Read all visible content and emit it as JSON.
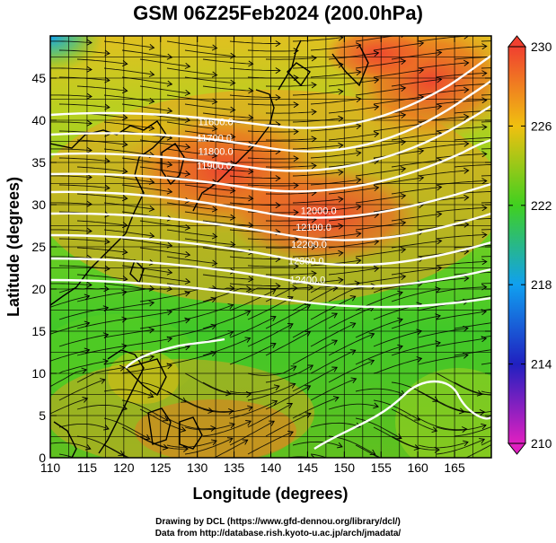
{
  "title": "GSM 06Z25Feb2024 (200.0hPa)",
  "xlabel": "Longitude (degrees)",
  "ylabel": "Latitude  (degrees)",
  "credits": {
    "line1": "Drawing by DCL (https://www.gfd-dennou.org/library/dcl/)",
    "line2": "Data from http://database.rish.kyoto-u.ac.jp/arch/jmadata/"
  },
  "chart_data": {
    "type": "heatmap",
    "xlim": [
      110,
      170
    ],
    "ylim": [
      0,
      50
    ],
    "x_ticks": [
      "110",
      "115",
      "120",
      "125",
      "130",
      "135",
      "140",
      "145",
      "150",
      "155",
      "160",
      "165"
    ],
    "y_ticks": [
      "0",
      "5",
      "10",
      "15",
      "20",
      "25",
      "30",
      "35",
      "40",
      "45"
    ],
    "colorbar_ticks": [
      "210",
      "214",
      "218",
      "222",
      "226",
      "230"
    ],
    "colorbar_range": [
      210,
      230
    ],
    "colors": {
      "210": "#e020c0",
      "214": "#2020c0",
      "218": "#10a0f0",
      "222": "#40d020",
      "226": "#f0c010",
      "230": "#f04030"
    },
    "contour_labels": [
      {
        "text": "11600.0",
        "lon": 132.5,
        "lat": 39.4
      },
      {
        "text": "11700.0",
        "lon": 132.3,
        "lat": 37.5
      },
      {
        "text": "11800.0",
        "lon": 132.5,
        "lat": 35.9
      },
      {
        "text": "11900.0",
        "lon": 132.3,
        "lat": 34.2
      },
      {
        "text": "12000.0",
        "lon": 146.5,
        "lat": 28.9
      },
      {
        "text": "12100.0",
        "lon": 145.8,
        "lat": 26.9
      },
      {
        "text": "12200.0",
        "lon": 145.2,
        "lat": 24.9
      },
      {
        "text": "12300.0",
        "lon": 144.8,
        "lat": 22.9
      },
      {
        "text": "12400.0",
        "lon": 145.0,
        "lat": 20.7
      }
    ]
  }
}
